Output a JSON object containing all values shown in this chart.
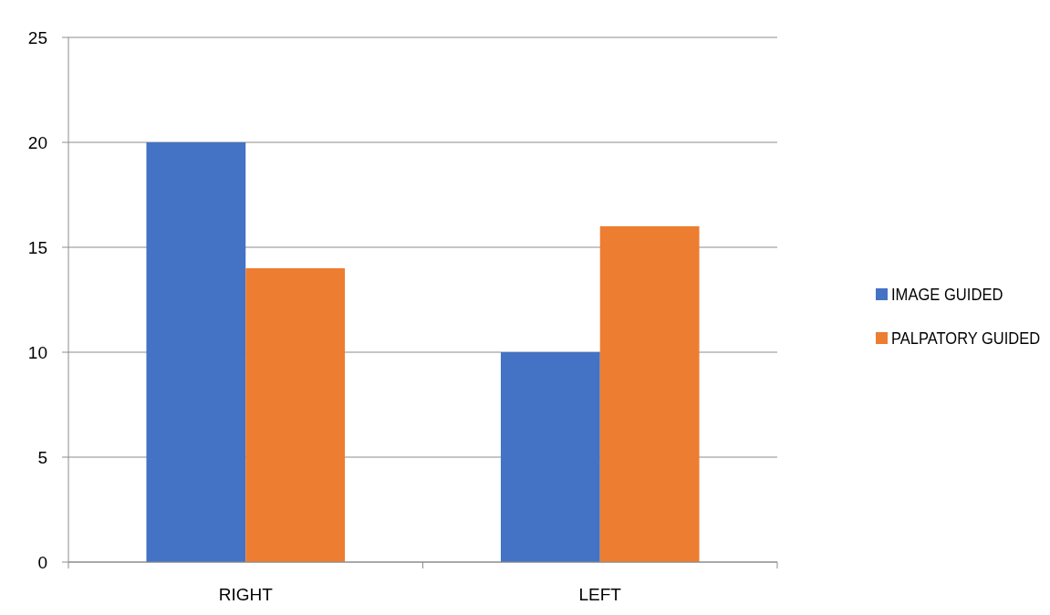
{
  "chart_data": {
    "type": "bar",
    "categories": [
      "RIGHT",
      "LEFT"
    ],
    "series": [
      {
        "name": "IMAGE GUIDED",
        "color": "#4472c4",
        "values": [
          20,
          10
        ]
      },
      {
        "name": "PALPATORY GUIDED",
        "color": "#ed7d31",
        "values": [
          14,
          16
        ]
      }
    ],
    "ylim": [
      0,
      25
    ],
    "yticks": [
      0,
      5,
      10,
      15,
      20,
      25
    ],
    "grid": "y",
    "legend": "right"
  }
}
